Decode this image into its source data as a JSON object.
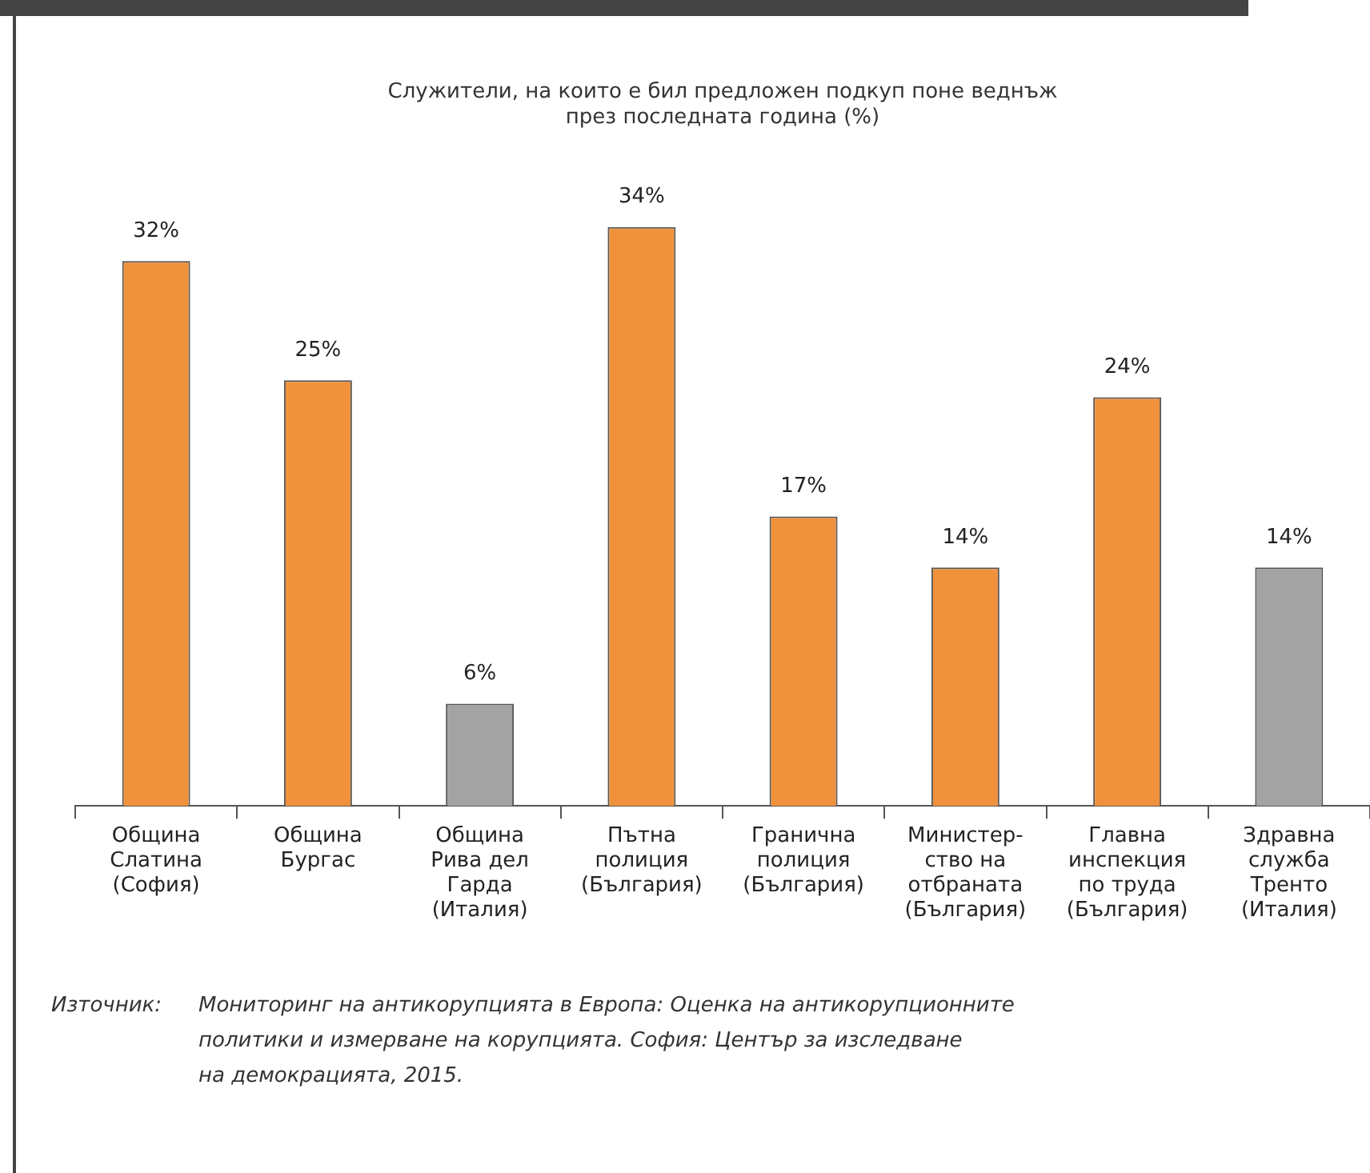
{
  "chart_data": {
    "type": "bar",
    "title": "Служители, на които е бил предложен подкуп поне веднъж\nпрез последната година (%)",
    "categories": [
      "Община\nСлатина\n(София)",
      "Община\nБургас",
      "Община\nРива дел\nГарда\n(Италия)",
      "Пътна\nполиция\n(България)",
      "Гранична\nполиция\n(България)",
      "Министер-\nство на\nотбраната\n(България)",
      "Главна\nинспекция\nпо труда\n(България)",
      "Здравна\nслужба\nТренто\n(Италия)"
    ],
    "values": [
      32,
      25,
      6,
      34,
      17,
      14,
      24,
      14
    ],
    "value_labels": [
      "32%",
      "25%",
      "6%",
      "34%",
      "17%",
      "14%",
      "24%",
      "14%"
    ],
    "colors": [
      "#f0923c",
      "#f0923c",
      "#a3a3a3",
      "#f0923c",
      "#f0923c",
      "#f0923c",
      "#f0923c",
      "#a3a3a3"
    ],
    "annotations": [
      "Източник:\tМониторинг на антикорупцията в Европа: Оценка на антикорупционните\nполитики и измерване на корупцията. София: Център за изследване\nна демокрацията, 2015."
    ]
  }
}
